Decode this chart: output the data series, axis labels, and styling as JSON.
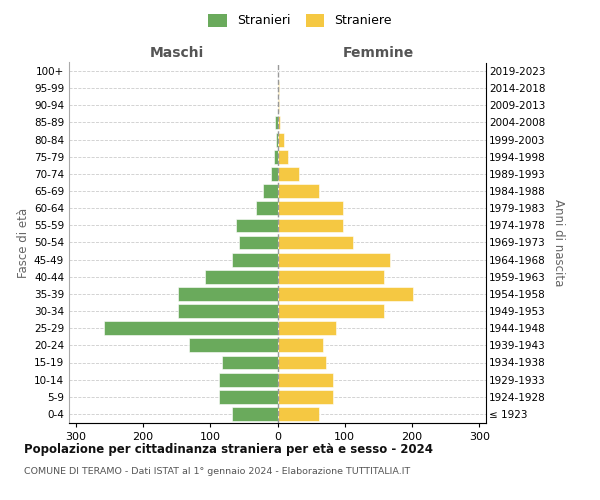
{
  "age_groups": [
    "100+",
    "95-99",
    "90-94",
    "85-89",
    "80-84",
    "75-79",
    "70-74",
    "65-69",
    "60-64",
    "55-59",
    "50-54",
    "45-49",
    "40-44",
    "35-39",
    "30-34",
    "25-29",
    "20-24",
    "15-19",
    "10-14",
    "5-9",
    "0-4"
  ],
  "birth_years": [
    "≤ 1923",
    "1924-1928",
    "1929-1933",
    "1934-1938",
    "1939-1943",
    "1944-1948",
    "1949-1953",
    "1954-1958",
    "1959-1963",
    "1964-1968",
    "1969-1973",
    "1974-1978",
    "1979-1983",
    "1984-1988",
    "1989-1993",
    "1994-1998",
    "1999-2003",
    "2004-2008",
    "2009-2013",
    "2014-2018",
    "2019-2023"
  ],
  "males": [
    0,
    0,
    0,
    3,
    2,
    5,
    10,
    22,
    32,
    62,
    57,
    68,
    108,
    148,
    148,
    258,
    132,
    82,
    87,
    87,
    67
  ],
  "females": [
    0,
    2,
    2,
    3,
    10,
    16,
    32,
    62,
    98,
    98,
    112,
    168,
    158,
    202,
    158,
    87,
    67,
    72,
    82,
    82,
    62
  ],
  "male_color": "#6aaa5c",
  "female_color": "#f5c842",
  "background_color": "#ffffff",
  "grid_color": "#cccccc",
  "title": "Popolazione per cittadinanza straniera per età e sesso - 2024",
  "subtitle": "COMUNE DI TERAMO - Dati ISTAT al 1° gennaio 2024 - Elaborazione TUTTITALIA.IT",
  "xlabel_left": "Maschi",
  "xlabel_right": "Femmine",
  "ylabel_left": "Fasce di età",
  "ylabel_right": "Anni di nascita",
  "legend_male": "Stranieri",
  "legend_female": "Straniere",
  "xlim": 310
}
